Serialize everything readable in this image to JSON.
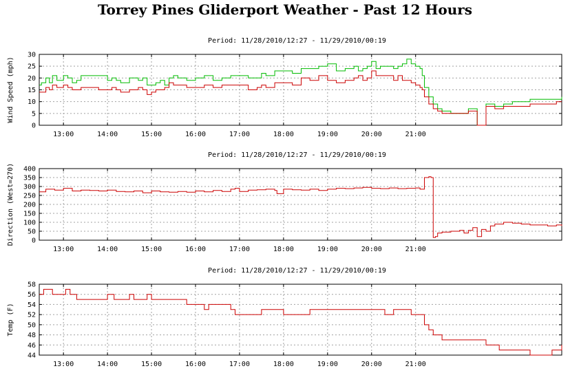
{
  "page": {
    "title": "Torrey Pines Gliderport Weather - Past 12 Hours"
  },
  "chart_data": [
    {
      "type": "line",
      "period": "Period: 11/28/2010/12:27 - 11/29/2010/00:19",
      "ylabel": "Wind Speed (mph)",
      "xlabel": "",
      "xlim": [
        12.45,
        24.32
      ],
      "ylim": [
        0,
        30
      ],
      "x_ticks": [
        13,
        14,
        15,
        16,
        17,
        18,
        19,
        20,
        21
      ],
      "x_tick_labels": [
        "13:00",
        "14:00",
        "15:00",
        "16:00",
        "17:00",
        "18:00",
        "19:00",
        "20:00",
        "21:00"
      ],
      "y_ticks": [
        0,
        5,
        10,
        15,
        20,
        25,
        30
      ],
      "grid": true,
      "series": [
        {
          "color": "#00bb00",
          "x": [
            12.45,
            12.5,
            12.6,
            12.68,
            12.75,
            12.85,
            13.0,
            13.1,
            13.2,
            13.3,
            13.4,
            13.5,
            13.6,
            13.7,
            13.8,
            14.0,
            14.1,
            14.2,
            14.3,
            14.5,
            14.7,
            14.8,
            14.9,
            15.0,
            15.1,
            15.2,
            15.3,
            15.4,
            15.5,
            15.6,
            15.8,
            16.0,
            16.2,
            16.4,
            16.6,
            16.8,
            17.0,
            17.2,
            17.4,
            17.5,
            17.6,
            17.8,
            18.0,
            18.2,
            18.4,
            18.6,
            18.8,
            19.0,
            19.2,
            19.4,
            19.6,
            19.7,
            19.8,
            19.9,
            20.0,
            20.1,
            20.2,
            20.4,
            20.5,
            20.6,
            20.7,
            20.8,
            20.9,
            21.0,
            21.1,
            21.15,
            21.2,
            21.3,
            21.4,
            21.5,
            21.6,
            21.8,
            22.0,
            22.2,
            22.4,
            22.6,
            22.8,
            22.9,
            23.0,
            23.2,
            23.4,
            23.6,
            23.8,
            24.0,
            24.2,
            24.32
          ],
          "y": [
            17,
            18,
            20,
            18,
            21,
            19,
            21,
            20,
            18,
            19,
            21,
            21,
            21,
            21,
            21,
            19,
            20,
            19,
            18,
            20,
            19,
            20,
            17,
            17,
            18,
            19,
            17,
            20,
            21,
            20,
            19,
            20,
            21,
            19,
            20,
            21,
            21,
            20,
            20,
            22,
            21,
            23,
            23,
            22,
            24,
            24,
            25,
            26,
            23,
            24,
            25,
            23,
            24,
            25,
            27,
            24,
            25,
            25,
            24,
            25,
            26,
            28,
            26,
            25,
            24,
            21,
            16,
            12,
            9,
            7,
            6,
            5,
            5,
            7,
            0,
            9,
            8,
            8,
            9,
            10,
            10,
            11,
            11,
            11,
            11,
            12
          ]
        },
        {
          "color": "#cc0000",
          "x": [
            12.45,
            12.5,
            12.6,
            12.68,
            12.75,
            12.85,
            13.0,
            13.1,
            13.2,
            13.3,
            13.4,
            13.5,
            13.6,
            13.7,
            13.8,
            14.0,
            14.1,
            14.2,
            14.3,
            14.5,
            14.7,
            14.8,
            14.9,
            15.0,
            15.1,
            15.2,
            15.3,
            15.4,
            15.5,
            15.6,
            15.8,
            16.0,
            16.2,
            16.4,
            16.6,
            16.8,
            17.0,
            17.2,
            17.4,
            17.5,
            17.6,
            17.8,
            18.0,
            18.2,
            18.4,
            18.6,
            18.8,
            19.0,
            19.2,
            19.4,
            19.6,
            19.7,
            19.8,
            19.9,
            20.0,
            20.1,
            20.2,
            20.4,
            20.5,
            20.6,
            20.7,
            20.8,
            20.9,
            21.0,
            21.1,
            21.15,
            21.2,
            21.3,
            21.4,
            21.5,
            21.6,
            21.8,
            22.0,
            22.2,
            22.4,
            22.6,
            22.8,
            22.9,
            23.0,
            23.2,
            23.4,
            23.6,
            23.8,
            24.0,
            24.2,
            24.32
          ],
          "y": [
            14,
            14,
            16,
            15,
            17,
            16,
            17,
            16,
            15,
            15,
            16,
            16,
            16,
            16,
            15,
            15,
            16,
            15,
            14,
            15,
            16,
            15,
            13,
            14,
            15,
            15,
            16,
            18,
            17,
            17,
            16,
            16,
            17,
            16,
            17,
            17,
            17,
            15,
            16,
            17,
            16,
            18,
            18,
            17,
            20,
            19,
            21,
            19,
            18,
            19,
            20,
            21,
            19,
            20,
            23,
            21,
            21,
            21,
            19,
            21,
            19,
            19,
            18,
            17,
            16,
            15,
            12,
            9,
            7,
            6,
            5,
            5,
            5,
            6,
            0,
            8,
            7,
            7,
            8,
            8,
            8,
            9,
            9,
            9,
            10,
            10
          ]
        }
      ]
    },
    {
      "type": "line",
      "period": "Period: 11/28/2010/12:27 - 11/29/2010/00:19",
      "ylabel": "Direction (West=270)",
      "xlabel": "",
      "xlim": [
        12.45,
        24.32
      ],
      "ylim": [
        0,
        400
      ],
      "x_ticks": [
        13,
        14,
        15,
        16,
        17,
        18,
        19,
        20,
        21
      ],
      "x_tick_labels": [
        "13:00",
        "14:00",
        "15:00",
        "16:00",
        "17:00",
        "18:00",
        "19:00",
        "20:00",
        "21:00"
      ],
      "y_ticks": [
        0,
        50,
        100,
        150,
        200,
        250,
        300,
        350,
        400
      ],
      "grid": true,
      "series": [
        {
          "color": "#cc0000",
          "x": [
            12.45,
            12.6,
            12.8,
            13.0,
            13.2,
            13.4,
            13.6,
            13.8,
            14.0,
            14.2,
            14.4,
            14.6,
            14.8,
            15.0,
            15.2,
            15.4,
            15.6,
            15.8,
            16.0,
            16.2,
            16.4,
            16.6,
            16.8,
            16.9,
            17.0,
            17.2,
            17.4,
            17.6,
            17.8,
            17.85,
            18.0,
            18.2,
            18.4,
            18.6,
            18.8,
            19.0,
            19.2,
            19.4,
            19.6,
            19.8,
            20.0,
            20.2,
            20.4,
            20.6,
            20.8,
            21.0,
            21.1,
            21.2,
            21.3,
            21.35,
            21.4,
            21.45,
            21.5,
            21.6,
            21.8,
            22.0,
            22.1,
            22.2,
            22.3,
            22.4,
            22.5,
            22.6,
            22.7,
            22.8,
            23.0,
            23.2,
            23.4,
            23.6,
            23.8,
            24.0,
            24.2,
            24.32
          ],
          "y": [
            270,
            285,
            280,
            290,
            275,
            280,
            278,
            275,
            280,
            272,
            270,
            275,
            265,
            275,
            270,
            268,
            272,
            268,
            275,
            270,
            278,
            272,
            285,
            290,
            272,
            280,
            282,
            285,
            278,
            260,
            285,
            282,
            280,
            285,
            278,
            285,
            290,
            288,
            292,
            295,
            290,
            288,
            292,
            288,
            290,
            292,
            285,
            350,
            355,
            350,
            15,
            20,
            40,
            45,
            50,
            55,
            40,
            55,
            70,
            20,
            60,
            50,
            80,
            90,
            100,
            95,
            90,
            85,
            85,
            80,
            85,
            80
          ]
        }
      ]
    },
    {
      "type": "line",
      "period": "Period: 11/28/2010/12:27 - 11/29/2010/00:19",
      "ylabel": "Temp (F)",
      "xlabel": "",
      "xlim": [
        12.45,
        24.32
      ],
      "ylim": [
        44,
        58
      ],
      "x_ticks": [
        13,
        14,
        15,
        16,
        17,
        18,
        19,
        20,
        21
      ],
      "x_tick_labels": [
        "13:00",
        "14:00",
        "15:00",
        "16:00",
        "17:00",
        "18:00",
        "19:00",
        "20:00",
        "21:00"
      ],
      "y_ticks": [
        44,
        46,
        48,
        50,
        52,
        54,
        56,
        58
      ],
      "grid": true,
      "series": [
        {
          "color": "#cc0000",
          "x": [
            12.45,
            12.55,
            12.65,
            12.75,
            13.0,
            13.05,
            13.15,
            13.3,
            13.5,
            13.9,
            14.0,
            14.15,
            14.3,
            14.5,
            14.6,
            14.9,
            15.0,
            15.4,
            15.7,
            15.8,
            16.0,
            16.2,
            16.3,
            16.6,
            16.8,
            16.9,
            17.2,
            17.5,
            17.9,
            18.0,
            18.6,
            19.0,
            19.5,
            20.1,
            20.3,
            20.5,
            20.7,
            20.9,
            21.1,
            21.2,
            21.3,
            21.4,
            21.6,
            21.8,
            22.3,
            22.6,
            22.9,
            23.3,
            23.6,
            23.9,
            24.1,
            24.2,
            24.32
          ],
          "y": [
            56,
            57,
            57,
            56,
            56,
            57,
            56,
            55,
            55,
            55,
            56,
            55,
            55,
            56,
            55,
            56,
            55,
            55,
            55,
            54,
            54,
            53,
            54,
            54,
            53,
            52,
            52,
            53,
            53,
            52,
            53,
            53,
            53,
            53,
            52,
            53,
            53,
            52,
            52,
            50,
            49,
            48,
            47,
            47,
            47,
            46,
            45,
            45,
            44,
            44,
            45,
            45,
            46
          ]
        }
      ]
    }
  ]
}
